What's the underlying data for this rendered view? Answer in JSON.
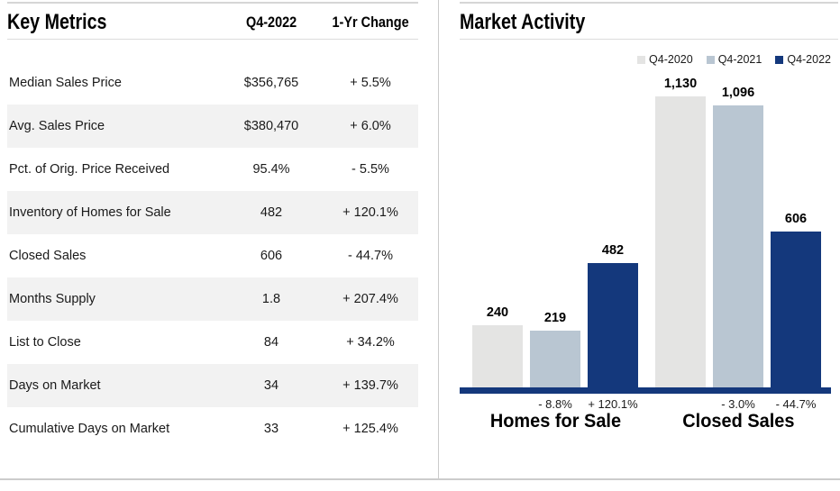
{
  "left_panel": {
    "title": "Key Metrics",
    "columns": [
      "Q4-2022",
      "1-Yr Change"
    ],
    "rows": [
      {
        "label": "Median Sales Price",
        "value": "$356,765",
        "change": "+ 5.5%"
      },
      {
        "label": "Avg. Sales Price",
        "value": "$380,470",
        "change": "+ 6.0%"
      },
      {
        "label": "Pct. of Orig. Price Received",
        "value": "95.4%",
        "change": "- 5.5%"
      },
      {
        "label": "Inventory of Homes for Sale",
        "value": "482",
        "change": "+ 120.1%"
      },
      {
        "label": "Closed Sales",
        "value": "606",
        "change": "- 44.7%"
      },
      {
        "label": "Months Supply",
        "value": "1.8",
        "change": "+ 207.4%"
      },
      {
        "label": "List to Close",
        "value": "84",
        "change": "+ 34.2%"
      },
      {
        "label": "Days on Market",
        "value": "34",
        "change": "+ 139.7%"
      },
      {
        "label": "Cumulative Days on Market",
        "value": "33",
        "change": "+ 125.4%"
      }
    ]
  },
  "right_panel": {
    "title": "Market Activity"
  },
  "chart_data": {
    "type": "bar",
    "title": "Market Activity",
    "categories": [
      "Homes for Sale",
      "Closed Sales"
    ],
    "series": [
      {
        "name": "Q4-2020",
        "color": "#e4e4e3",
        "values": [
          240,
          1130
        ],
        "value_labels": [
          "240",
          "1,130"
        ],
        "pct_labels": [
          "",
          ""
        ]
      },
      {
        "name": "Q4-2021",
        "color": "#b9c6d2",
        "values": [
          219,
          1096
        ],
        "value_labels": [
          "219",
          "1,096"
        ],
        "pct_labels": [
          "- 8.8%",
          "- 3.0%"
        ]
      },
      {
        "name": "Q4-2022",
        "color": "#14387c",
        "values": [
          482,
          606
        ],
        "value_labels": [
          "482",
          "606"
        ],
        "pct_labels": [
          "+ 120.1%",
          "- 44.7%"
        ]
      }
    ],
    "ylim": [
      0,
      1130
    ],
    "xlabel": "",
    "ylabel": "",
    "grid": false,
    "legend_position": "top-right",
    "axis_color": "#14387c"
  },
  "colors": {
    "zebra_row": "#f2f2f2",
    "navy": "#14387c",
    "blue_gray": "#b9c6d2",
    "light_gray": "#e4e4e3"
  }
}
